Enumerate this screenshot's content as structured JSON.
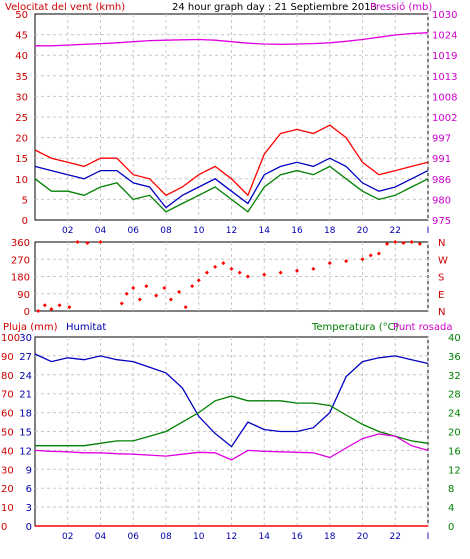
{
  "header": {
    "wind_title": "Velocitat del vent (kmh)",
    "date_title": "24 hour graph day : 21 Septiembre 2013",
    "pressure_title": "Pressió (mb)"
  },
  "bottom_header": {
    "rain_label": "Pluja (mm)",
    "humidity_label": "Humitat",
    "temperature_label": "Temperatura (°C)",
    "dewpoint_label": "Punt rosada"
  },
  "colors": {
    "wind_gust": "#ff0000",
    "wind_avg": "#008000",
    "wind_dir_line": "#0000c0",
    "pressure": "#e000e0",
    "wind_dir_points": "#ff0000",
    "humidity": "#0000c0",
    "temperature": "#008000",
    "dewpoint": "#e000e0",
    "rain": "#ff0000",
    "grid": "#c8c8c8"
  },
  "chart_data": [
    {
      "type": "line",
      "name": "wind-pressure",
      "x_ticks": [
        "02",
        "04",
        "06",
        "08",
        "10",
        "12",
        "14",
        "16",
        "18",
        "20",
        "22",
        "I"
      ],
      "left_axis": {
        "ticks": [
          0,
          5,
          10,
          15,
          20,
          25,
          30,
          35,
          40,
          45,
          50
        ],
        "ylim": [
          0,
          50
        ]
      },
      "right_axis": {
        "ticks": [
          975,
          980,
          986,
          991,
          997,
          1002,
          1008,
          1013,
          1019,
          1024,
          1030
        ],
        "ylim": [
          975,
          1030
        ]
      },
      "x": [
        0,
        1,
        2,
        3,
        4,
        5,
        6,
        7,
        8,
        9,
        10,
        11,
        12,
        13,
        14,
        15,
        16,
        17,
        18,
        19,
        20,
        21,
        22,
        23,
        24
      ],
      "series": [
        {
          "key": "gust",
          "values": [
            17,
            15,
            14,
            13,
            15,
            15,
            11,
            10,
            6,
            8,
            11,
            13,
            10,
            6,
            16,
            21,
            22,
            21,
            23,
            20,
            14,
            11,
            12,
            13,
            14
          ]
        },
        {
          "key": "avg",
          "values": [
            10,
            7,
            7,
            6,
            8,
            9,
            5,
            6,
            2,
            4,
            6,
            8,
            5,
            2,
            8,
            11,
            12,
            11,
            13,
            10,
            7,
            5,
            6,
            8,
            10
          ]
        },
        {
          "key": "wind_line",
          "values": [
            13,
            12,
            11,
            10,
            12,
            12,
            9,
            8,
            3,
            6,
            8,
            10,
            7,
            4,
            11,
            13,
            14,
            13,
            15,
            13,
            9,
            7,
            8,
            10,
            12
          ]
        },
        {
          "key": "pressure",
          "values": [
            1021.5,
            1021.5,
            1021.7,
            1021.9,
            1022.1,
            1022.3,
            1022.6,
            1022.9,
            1023.0,
            1023.1,
            1023.2,
            1023.0,
            1022.6,
            1022.2,
            1022.0,
            1021.9,
            1022.0,
            1022.1,
            1022.3,
            1022.7,
            1023.2,
            1023.8,
            1024.4,
            1024.8,
            1025.0
          ]
        }
      ]
    },
    {
      "type": "scatter",
      "name": "wind-direction",
      "x_ticks": [
        "02",
        "04",
        "06",
        "08",
        "10",
        "12",
        "14",
        "16",
        "18",
        "20",
        "22",
        "I"
      ],
      "left_axis": {
        "ticks": [
          0,
          90,
          180,
          270,
          360
        ],
        "ylim": [
          0,
          360
        ]
      },
      "right_axis": {
        "ticks": [
          "N",
          "E",
          "S",
          "W",
          "N"
        ]
      },
      "x": [
        0.2,
        0.6,
        1.0,
        1.5,
        2.1,
        2.6,
        3.2,
        4.0,
        5.3,
        5.6,
        6.0,
        6.4,
        6.8,
        7.4,
        7.9,
        8.3,
        8.8,
        9.2,
        9.6,
        10.0,
        10.5,
        11.0,
        11.5,
        12.0,
        12.5,
        13.0,
        14.0,
        15.0,
        16.0,
        17.0,
        18.0,
        19.0,
        20.0,
        20.5,
        21.0,
        21.5,
        22.0,
        22.5,
        23.0,
        23.5
      ],
      "values": [
        0,
        30,
        10,
        30,
        20,
        360,
        355,
        360,
        40,
        90,
        120,
        60,
        130,
        80,
        120,
        60,
        100,
        20,
        130,
        160,
        200,
        230,
        250,
        220,
        200,
        180,
        190,
        200,
        210,
        220,
        250,
        260,
        270,
        290,
        300,
        350,
        360,
        355,
        360,
        350
      ]
    },
    {
      "type": "line",
      "name": "humidity-temperature",
      "x_ticks": [
        "02",
        "04",
        "06",
        "08",
        "10",
        "12",
        "14",
        "16",
        "18",
        "20",
        "22",
        "I"
      ],
      "rain_axis": {
        "ticks": [
          0,
          10,
          20,
          30,
          40,
          50,
          60,
          70,
          80,
          90,
          100
        ],
        "ylim": [
          0,
          100
        ]
      },
      "humidity_axis": {
        "ticks": [
          0,
          3,
          6,
          9,
          12,
          15,
          18,
          21,
          24,
          27,
          30
        ],
        "ylim": [
          0,
          30
        ]
      },
      "temp_axis": {
        "ticks": [
          0,
          4,
          8,
          12,
          16,
          20,
          24,
          28,
          32,
          36,
          40
        ],
        "ylim": [
          0,
          40
        ]
      },
      "x": [
        0,
        1,
        2,
        3,
        4,
        5,
        6,
        7,
        8,
        9,
        10,
        11,
        12,
        13,
        14,
        15,
        16,
        17,
        18,
        19,
        20,
        21,
        22,
        23,
        24
      ],
      "series": [
        {
          "key": "humidity",
          "values": [
            91,
            87,
            89,
            88,
            90,
            88,
            87,
            84,
            81,
            73,
            58,
            49,
            42,
            55,
            51,
            50,
            50,
            52,
            60,
            79,
            87,
            89,
            90,
            88,
            86
          ]
        },
        {
          "key": "temperature",
          "values": [
            17,
            17,
            17,
            17,
            17.5,
            18,
            18,
            19,
            20,
            22,
            24,
            26.5,
            27.5,
            26.5,
            26.5,
            26.5,
            26,
            26,
            25.5,
            23.5,
            21.5,
            20,
            19,
            18,
            17.5
          ]
        },
        {
          "key": "dewpoint",
          "values": [
            16,
            15.8,
            15.7,
            15.5,
            15.5,
            15.3,
            15.2,
            15.0,
            14.8,
            15.2,
            15.6,
            15.5,
            14.0,
            16.0,
            15.8,
            15.7,
            15.6,
            15.5,
            14.5,
            16.5,
            18.5,
            19.5,
            19.0,
            17.0,
            16.0
          ]
        },
        {
          "key": "rain",
          "values": [
            0,
            0,
            0,
            0,
            0,
            0,
            0,
            0,
            0,
            0,
            0,
            0,
            0,
            0,
            0,
            0,
            0,
            0,
            0,
            0,
            0,
            0,
            0,
            0,
            0
          ]
        }
      ]
    }
  ]
}
